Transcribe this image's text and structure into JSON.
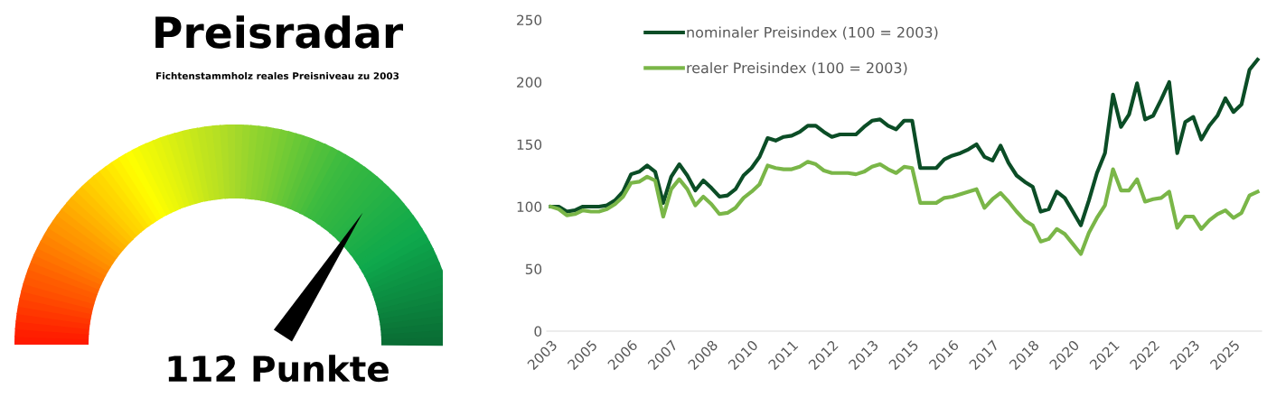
{
  "chart_data": [
    {
      "type": "other",
      "title": "Preisradar",
      "subtitle": "Fichtenstammholz reales Preisniveau zu 2003",
      "annotations": [
        "112 Punkte"
      ]
    },
    {
      "type": "line",
      "categories": [
        "2003",
        null,
        null,
        null,
        null,
        "2005",
        null,
        null,
        null,
        null,
        "2006",
        null,
        null,
        null,
        null,
        "2007",
        null,
        null,
        null,
        null,
        "2008",
        null,
        null,
        null,
        null,
        "2010",
        null,
        null,
        null,
        null,
        "2011",
        null,
        null,
        null,
        null,
        "2012",
        null,
        null,
        null,
        null,
        "2013",
        null,
        null,
        null,
        null,
        "2015",
        null,
        null,
        null,
        null,
        "2016",
        null,
        null,
        null,
        null,
        "2017",
        null,
        null,
        null,
        null,
        "2018",
        null,
        null,
        null,
        null,
        "2020",
        null,
        null,
        null,
        null,
        "2021",
        null,
        null,
        null,
        null,
        "2022",
        null,
        null,
        null,
        null,
        "2023",
        null,
        null,
        null,
        null,
        "2025",
        null,
        null,
        null
      ],
      "series": [
        {
          "name": "nominaler Preisindex (100 = 2003)",
          "color": "#0b4d26",
          "values": [
            100,
            100,
            96,
            97,
            100,
            100,
            100,
            101,
            105,
            112,
            126,
            128,
            133,
            128,
            103,
            124,
            134,
            125,
            113,
            121,
            115,
            108,
            109,
            114,
            125,
            131,
            140,
            155,
            153,
            156,
            157,
            160,
            165,
            165,
            160,
            156,
            158,
            158,
            158,
            164,
            169,
            170,
            165,
            162,
            169,
            169,
            131,
            131,
            131,
            138,
            141,
            143,
            146,
            150,
            140,
            137,
            149,
            135,
            125,
            120,
            116,
            96,
            98,
            112,
            107,
            96,
            85,
            105,
            127,
            143,
            190,
            164,
            174,
            199,
            170,
            173,
            186,
            200,
            143,
            168,
            172,
            154,
            165,
            173,
            187,
            176,
            182,
            210,
            218
          ]
        },
        {
          "name": "realer Preisindex (100 = 2003)",
          "color": "#7ab648",
          "values": [
            100,
            98,
            93,
            94,
            97,
            96,
            96,
            98,
            102,
            108,
            119,
            120,
            124,
            121,
            92,
            114,
            122,
            114,
            101,
            108,
            102,
            94,
            95,
            99,
            107,
            112,
            118,
            133,
            131,
            130,
            130,
            132,
            136,
            134,
            129,
            127,
            127,
            127,
            126,
            128,
            132,
            134,
            130,
            127,
            132,
            131,
            103,
            103,
            103,
            107,
            108,
            110,
            112,
            114,
            99,
            106,
            111,
            104,
            96,
            89,
            85,
            72,
            74,
            82,
            78,
            70,
            62,
            79,
            91,
            101,
            130,
            113,
            113,
            122,
            104,
            106,
            107,
            112,
            83,
            92,
            92,
            82,
            89,
            94,
            97,
            91,
            95,
            109,
            112
          ]
        }
      ],
      "ylim": [
        0,
        250
      ],
      "yticks": [
        0,
        50,
        100,
        150,
        200,
        250
      ],
      "legend": "top left"
    }
  ]
}
